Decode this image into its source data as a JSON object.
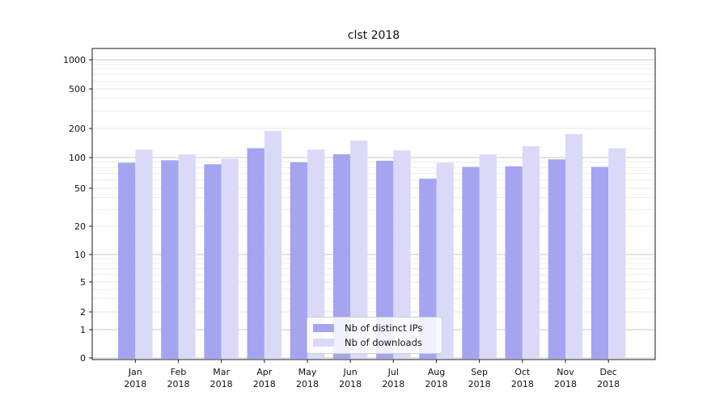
{
  "figure": {
    "title": "clst 2018"
  },
  "legend": {
    "items": [
      {
        "label": "Nb of distinct IPs",
        "color": "#a4a4f1"
      },
      {
        "label": "Nb of downloads",
        "color": "#dadaf8"
      }
    ]
  },
  "chart_data": {
    "type": "bar",
    "title": "clst 2018",
    "categories": [
      "Jan 2018",
      "Feb 2018",
      "Mar 2018",
      "Apr 2018",
      "May 2018",
      "Jun 2018",
      "Jul 2018",
      "Aug 2018",
      "Sep 2018",
      "Oct 2018",
      "Nov 2018",
      "Dec 2018"
    ],
    "series": [
      {
        "name": "Nb of distinct IPs",
        "color": "#a4a4f1",
        "values": [
          89,
          94,
          86,
          125,
          90,
          108,
          93,
          62,
          81,
          82,
          96,
          81
        ]
      },
      {
        "name": "Nb of downloads",
        "color": "#dadaf8",
        "values": [
          121,
          108,
          97,
          189,
          121,
          150,
          119,
          89,
          108,
          131,
          175,
          125
        ]
      }
    ],
    "xlabel": "",
    "ylabel": "",
    "yscale": "symlog",
    "y_ticks": [
      0,
      1,
      2,
      5,
      10,
      20,
      50,
      100,
      200,
      500,
      1000
    ],
    "ylim": [
      0,
      1300
    ],
    "grid": true,
    "legend_position": "lower center"
  }
}
